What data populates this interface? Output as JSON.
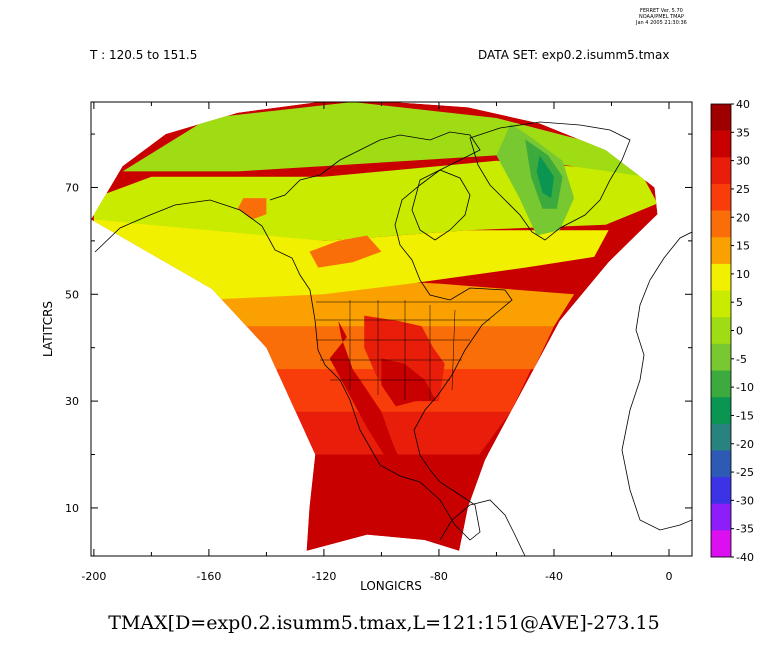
{
  "header": {
    "left_label": "T : 120.5 to 151.5",
    "right_label": "DATA SET: exp0.2.isumm5.tmax"
  },
  "stamp": {
    "line1": "FERRET Ver. 5.70",
    "line2": "NOAA/PMEL TMAP",
    "line3": "Jan  4 2005 21:30:36"
  },
  "footer": {
    "caption": "TMAX[D=exp0.2.isumm5.tmax,L=121:151@AVE]-273.15"
  },
  "chart_data": {
    "type": "heatmap",
    "xlabel": "LONGICRS",
    "ylabel": "LATITCRS",
    "xlim": [
      -201,
      8
    ],
    "ylim": [
      1,
      86
    ],
    "x_ticks": [
      -200,
      -160,
      -120,
      -80,
      -40,
      0
    ],
    "x_tick_labels": [
      "-200",
      "-160",
      "-120",
      "-80",
      "-40",
      "0"
    ],
    "y_ticks": [
      10,
      30,
      50,
      70
    ],
    "y_tick_labels": [
      "10",
      "30",
      "50",
      "70"
    ],
    "colorbar": {
      "levels": [
        40,
        35,
        30,
        25,
        20,
        15,
        10,
        5,
        0,
        -5,
        -10,
        -15,
        -20,
        -25,
        -30,
        -35,
        -40
      ],
      "colors": [
        "#9e0000",
        "#c80000",
        "#e81e0a",
        "#f83c0a",
        "#fa6e0a",
        "#faa000",
        "#f0f000",
        "#c8eb00",
        "#a0dc14",
        "#78c832",
        "#3caa3c",
        "#0a9650",
        "#28827d",
        "#2d5ab4",
        "#3c32e6",
        "#8c1efa",
        "#dc0ff0"
      ]
    },
    "domain_polygon": [
      [
        -126,
        2
      ],
      [
        -125,
        10
      ],
      [
        -123,
        20
      ],
      [
        -140,
        40
      ],
      [
        -159,
        51
      ],
      [
        -201,
        64
      ],
      [
        -190,
        74
      ],
      [
        -175,
        80
      ],
      [
        -150,
        84
      ],
      [
        -122,
        86
      ],
      [
        -96,
        86
      ],
      [
        -70,
        85
      ],
      [
        -45,
        82
      ],
      [
        -22,
        77
      ],
      [
        -5,
        70
      ],
      [
        -4,
        65
      ],
      [
        -21,
        56
      ],
      [
        -38,
        45
      ],
      [
        -50,
        33
      ],
      [
        -64,
        19
      ],
      [
        -70,
        10
      ],
      [
        -73,
        2
      ],
      [
        -85,
        4
      ],
      [
        -105,
        5
      ]
    ],
    "bands": [
      {
        "value": 32,
        "polygon": [
          [
            -126,
            0
          ],
          [
            -70,
            0
          ],
          [
            -63,
            20
          ],
          [
            -70,
            25
          ],
          [
            -100,
            28
          ],
          [
            -125,
            25
          ],
          [
            -130,
            20
          ]
        ]
      },
      {
        "value": 26,
        "polygon": [
          [
            -128,
            20
          ],
          [
            -66,
            20
          ],
          [
            -55,
            28
          ],
          [
            -75,
            32
          ],
          [
            -100,
            36
          ],
          [
            -125,
            33
          ],
          [
            -140,
            30
          ]
        ]
      },
      {
        "value": 22,
        "polygon": [
          [
            -135,
            28
          ],
          [
            -55,
            28
          ],
          [
            -47,
            37
          ],
          [
            -80,
            40
          ],
          [
            -110,
            41
          ],
          [
            -140,
            38
          ]
        ]
      },
      {
        "value": 17,
        "polygon": [
          [
            -140,
            36
          ],
          [
            -47,
            36
          ],
          [
            -40,
            44
          ],
          [
            -75,
            46
          ],
          [
            -110,
            47
          ],
          [
            -150,
            45
          ]
        ]
      },
      {
        "value": 12,
        "polygon": [
          [
            -150,
            44
          ],
          [
            -40,
            44
          ],
          [
            -33,
            50
          ],
          [
            -80,
            52
          ],
          [
            -120,
            53
          ],
          [
            -160,
            50
          ]
        ]
      },
      {
        "value": 7,
        "polygon": [
          [
            -200,
            58
          ],
          [
            -160,
            49
          ],
          [
            -120,
            50
          ],
          [
            -90,
            52
          ],
          [
            -50,
            55
          ],
          [
            -26,
            57
          ],
          [
            -21,
            62
          ],
          [
            -70,
            62
          ],
          [
            -120,
            60
          ],
          [
            -160,
            63
          ],
          [
            -200,
            66
          ]
        ]
      },
      {
        "value": 3,
        "polygon": [
          [
            -200,
            64
          ],
          [
            -160,
            62
          ],
          [
            -120,
            60
          ],
          [
            -70,
            62
          ],
          [
            -22,
            63
          ],
          [
            -4,
            67
          ],
          [
            -10,
            73
          ],
          [
            -60,
            75
          ],
          [
            -120,
            72
          ],
          [
            -180,
            72
          ],
          [
            -200,
            68
          ]
        ]
      },
      {
        "value": -3,
        "polygon": [
          [
            -190,
            73
          ],
          [
            -150,
            73
          ],
          [
            -120,
            74
          ],
          [
            -60,
            76
          ],
          [
            -8,
            72
          ],
          [
            -24,
            78
          ],
          [
            -60,
            83
          ],
          [
            -110,
            86
          ],
          [
            -160,
            83
          ]
        ]
      },
      {
        "value": -8,
        "polygon": [
          [
            -55,
            82
          ],
          [
            -47,
            79
          ],
          [
            -37,
            75
          ],
          [
            -33,
            68
          ],
          [
            -38,
            62
          ],
          [
            -46,
            61
          ],
          [
            -52,
            68
          ],
          [
            -60,
            76
          ]
        ]
      },
      {
        "value": -13,
        "polygon": [
          [
            -50,
            79
          ],
          [
            -42,
            76
          ],
          [
            -37,
            72
          ],
          [
            -39,
            66
          ],
          [
            -44,
            66
          ],
          [
            -48,
            72
          ]
        ]
      },
      {
        "value": -18,
        "polygon": [
          [
            -45,
            76
          ],
          [
            -40,
            72
          ],
          [
            -41,
            68
          ],
          [
            -44,
            69
          ],
          [
            -46,
            73
          ]
        ]
      },
      {
        "value": 18,
        "polygon": [
          [
            -150,
            66
          ],
          [
            -145,
            64
          ],
          [
            -140,
            65
          ],
          [
            -140,
            68
          ],
          [
            -148,
            68
          ]
        ]
      },
      {
        "value": 17,
        "polygon": [
          [
            -125,
            58
          ],
          [
            -115,
            60
          ],
          [
            -105,
            61
          ],
          [
            -100,
            58
          ],
          [
            -110,
            56
          ],
          [
            -122,
            55
          ]
        ]
      },
      {
        "value": 33,
        "polygon": [
          [
            -115,
            45
          ],
          [
            -112,
            42
          ],
          [
            -118,
            38
          ],
          [
            -113,
            33
          ],
          [
            -105,
            25
          ],
          [
            -98,
            19
          ],
          [
            -92,
            17
          ],
          [
            -96,
            22
          ],
          [
            -100,
            28
          ],
          [
            -105,
            32
          ],
          [
            -110,
            36
          ],
          [
            -114,
            42
          ]
        ]
      },
      {
        "value": 28,
        "polygon": [
          [
            -106,
            46
          ],
          [
            -94,
            45
          ],
          [
            -86,
            44
          ],
          [
            -82,
            40
          ],
          [
            -78,
            37
          ],
          [
            -80,
            30
          ],
          [
            -87,
            30
          ],
          [
            -95,
            30
          ],
          [
            -102,
            35
          ],
          [
            -106,
            40
          ]
        ]
      },
      {
        "value": 33,
        "polygon": [
          [
            -100,
            38
          ],
          [
            -92,
            37
          ],
          [
            -85,
            34
          ],
          [
            -81,
            30
          ],
          [
            -88,
            30
          ],
          [
            -95,
            29
          ],
          [
            -100,
            33
          ]
        ]
      },
      {
        "value": 33,
        "polygon": [
          [
            -80,
            10
          ],
          [
            -75,
            8
          ],
          [
            -72,
            4
          ],
          [
            -68,
            8
          ],
          [
            -72,
            12
          ],
          [
            -76,
            11
          ]
        ]
      }
    ]
  }
}
